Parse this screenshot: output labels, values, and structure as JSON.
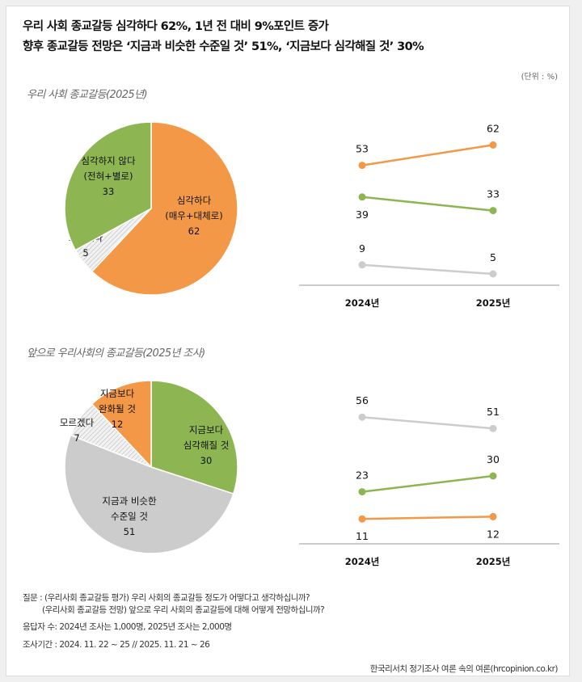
{
  "header": {
    "title1": "우리 사회 종교갈등 심각하다 62%, 1년 전 대비 9%포인트 증가",
    "title2": "향후 종교갈등 전망은 ‘지금과 비슷한 수준일 것’ 51%, ‘지금보다 심각해질 것’ 30%",
    "unit": "(단위 : %)"
  },
  "colors": {
    "orange": "#f39847",
    "green": "#8db552",
    "grey": "#cccccc",
    "hatch": "#e8e8e8"
  },
  "chart_data": [
    {
      "type": "pie",
      "subtitle": "우리 사회 종교갈등(2025년)",
      "slices": [
        {
          "label": [
            "심각하다",
            "(매우+대체로)"
          ],
          "value": 62,
          "color": "orange"
        },
        {
          "label": [
            "모르겠다"
          ],
          "value": 5,
          "color": "hatch"
        },
        {
          "label": [
            "심각하지 않다",
            "(전혀+별로)"
          ],
          "value": 33,
          "color": "green"
        }
      ]
    },
    {
      "type": "line",
      "categories": [
        "2024년",
        "2025년"
      ],
      "series": [
        {
          "values": [
            53,
            62
          ],
          "color": "orange"
        },
        {
          "values": [
            39,
            33
          ],
          "color": "green"
        },
        {
          "values": [
            9,
            5
          ],
          "color": "grey"
        }
      ]
    },
    {
      "type": "pie",
      "subtitle": "앞으로 우리사회의 종교갈등(2025년 조사)",
      "slices": [
        {
          "label": [
            "지금보다",
            "심각해질 것"
          ],
          "value": 30,
          "color": "green"
        },
        {
          "label": [
            "지금과 비슷한",
            "수준일 것"
          ],
          "value": 51,
          "color": "grey"
        },
        {
          "label": [
            "모르겠다"
          ],
          "value": 7,
          "color": "hatch"
        },
        {
          "label": [
            "지금보다",
            "완화될 것"
          ],
          "value": 12,
          "color": "orange"
        }
      ]
    },
    {
      "type": "line",
      "categories": [
        "2024년",
        "2025년"
      ],
      "series": [
        {
          "values": [
            56,
            51
          ],
          "color": "grey"
        },
        {
          "values": [
            23,
            30
          ],
          "color": "green"
        },
        {
          "values": [
            11,
            12
          ],
          "color": "orange"
        }
      ]
    }
  ],
  "footer": {
    "q1": "질문 : (우리사회 종교갈등 평가) 우리 사회의 종교갈등 정도가 어떻다고 생각하십니까?",
    "q2": "(우리사회 종교갈등 전망) 앞으로 우리 사회의 종교갈등에 대해 어떻게 전망하십니까?",
    "respondents": "응답자 수: 2024년 조사는 1,000명, 2025년 조사는 2,000명",
    "period": "조사기간 : 2024. 11. 22 ~ 25 // 2025. 11. 21 ~ 26",
    "source": "한국리서치 정기조사 여론 속의 여론(hrcopinion.co.kr)"
  }
}
